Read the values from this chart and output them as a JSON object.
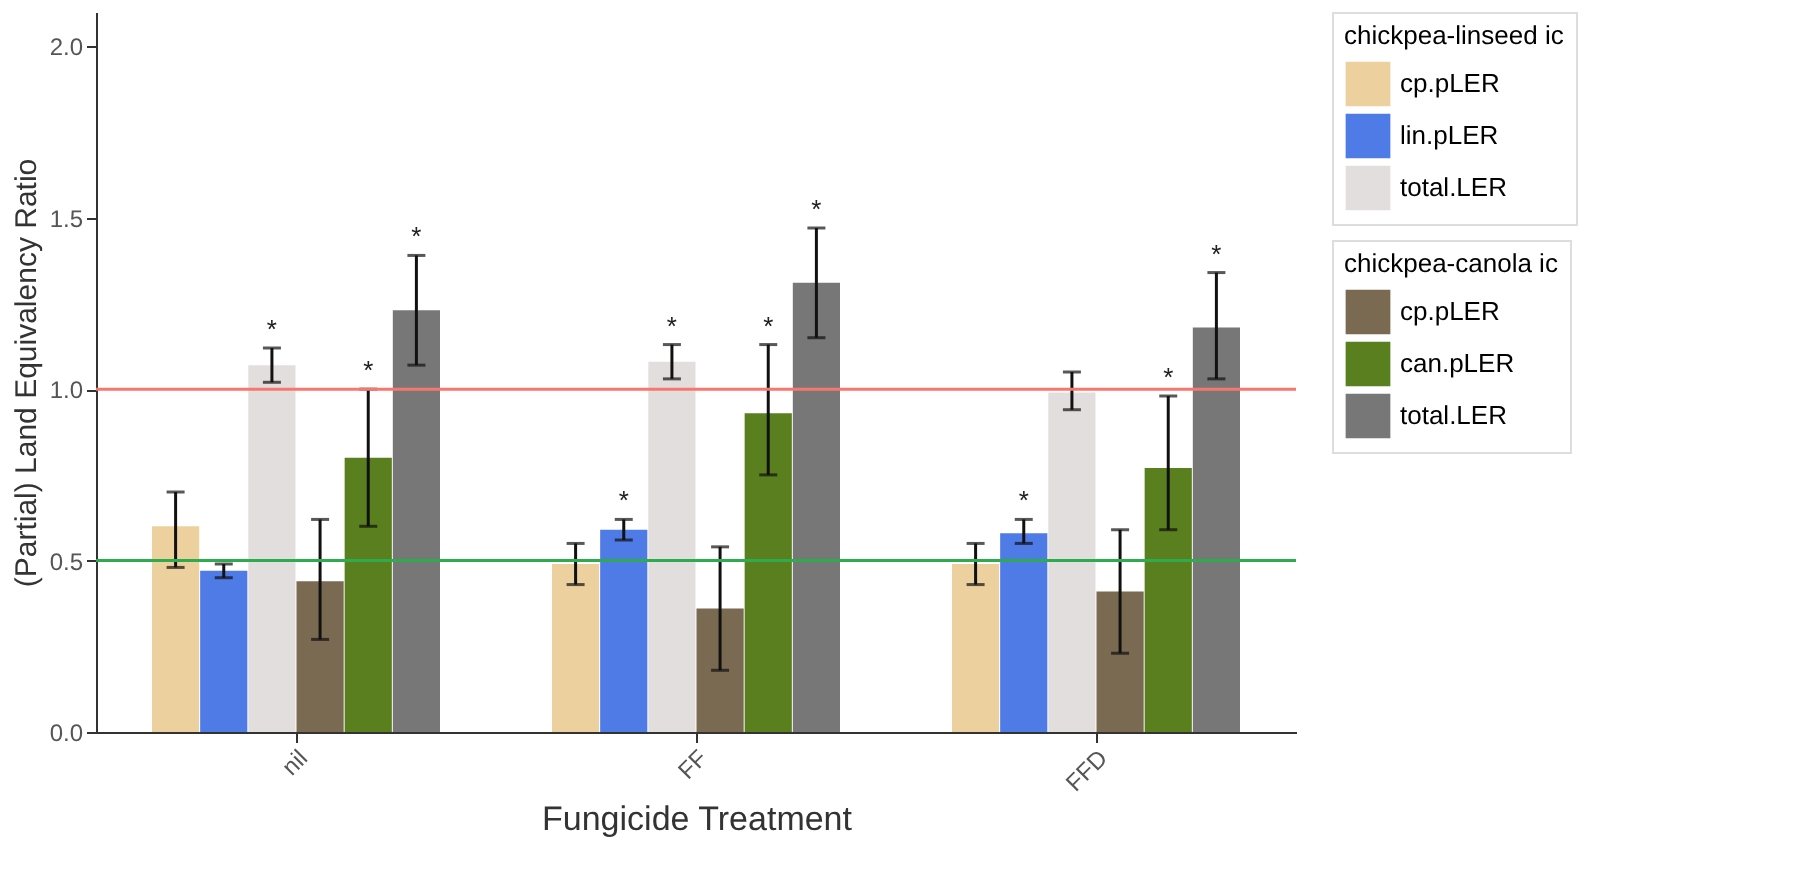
{
  "chart_data": {
    "type": "bar",
    "xlabel": "Fungicide Treatment",
    "ylabel": "(Partial) Land Equivalency Ratio",
    "legend_title": [
      "chickpea-linseed ic",
      "chickpea-canola ic"
    ],
    "categories": [
      "nil",
      "FF",
      "FFD"
    ],
    "series": [
      {
        "name": "cp.pLER",
        "color": "#ecd09e",
        "values": [
          0.6,
          0.49,
          0.49
        ],
        "errors": [
          [
            0.48,
            0.7
          ],
          [
            0.43,
            0.55
          ],
          [
            0.43,
            0.55
          ]
        ]
      },
      {
        "name": "lin.pLER",
        "color": "#4f7be6",
        "values": [
          0.47,
          0.59,
          0.58
        ],
        "errors": [
          [
            0.45,
            0.49
          ],
          [
            0.56,
            0.62
          ],
          [
            0.55,
            0.62
          ]
        ],
        "value_labels": [
          null,
          "*",
          "*"
        ]
      },
      {
        "name": "total.LER",
        "color": "#e3dede",
        "values": [
          1.07,
          1.08,
          0.99
        ],
        "errors": [
          [
            1.02,
            1.12
          ],
          [
            1.03,
            1.13
          ],
          [
            0.94,
            1.05
          ]
        ],
        "value_labels": [
          "*",
          "*",
          null
        ]
      },
      {
        "name": "cp.pLER",
        "color": "#7a6a52",
        "values": [
          0.44,
          0.36,
          0.41
        ],
        "errors": [
          [
            0.27,
            0.62
          ],
          [
            0.18,
            0.54
          ],
          [
            0.23,
            0.59
          ]
        ]
      },
      {
        "name": "can.pLER",
        "color": "#5a7f1e",
        "values": [
          0.8,
          0.93,
          0.77
        ],
        "errors": [
          [
            0.6,
            1.0
          ],
          [
            0.75,
            1.13
          ],
          [
            0.59,
            0.98
          ]
        ],
        "value_labels": [
          "*",
          "*",
          "*"
        ]
      },
      {
        "name": "total.LER",
        "color": "#777777",
        "values": [
          1.23,
          1.31,
          1.18
        ],
        "errors": [
          [
            1.07,
            1.39
          ],
          [
            1.15,
            1.47
          ],
          [
            1.03,
            1.34
          ]
        ],
        "value_labels": [
          "*",
          "*",
          "*"
        ]
      }
    ],
    "ylim": [
      0,
      2.1
    ],
    "yticks": [
      {
        "value": 0,
        "label": "0.0"
      },
      0.5,
      {
        "value": 1,
        "label": "1.0"
      },
      1.5,
      {
        "value": 2,
        "label": "2.0"
      }
    ],
    "ref_lines": [
      {
        "axis": "y",
        "value": 1,
        "color": "#f8766d"
      },
      {
        "axis": "y",
        "value": 0.5,
        "color": "#2eaa4f"
      }
    ],
    "grid": false,
    "legend": "right"
  }
}
